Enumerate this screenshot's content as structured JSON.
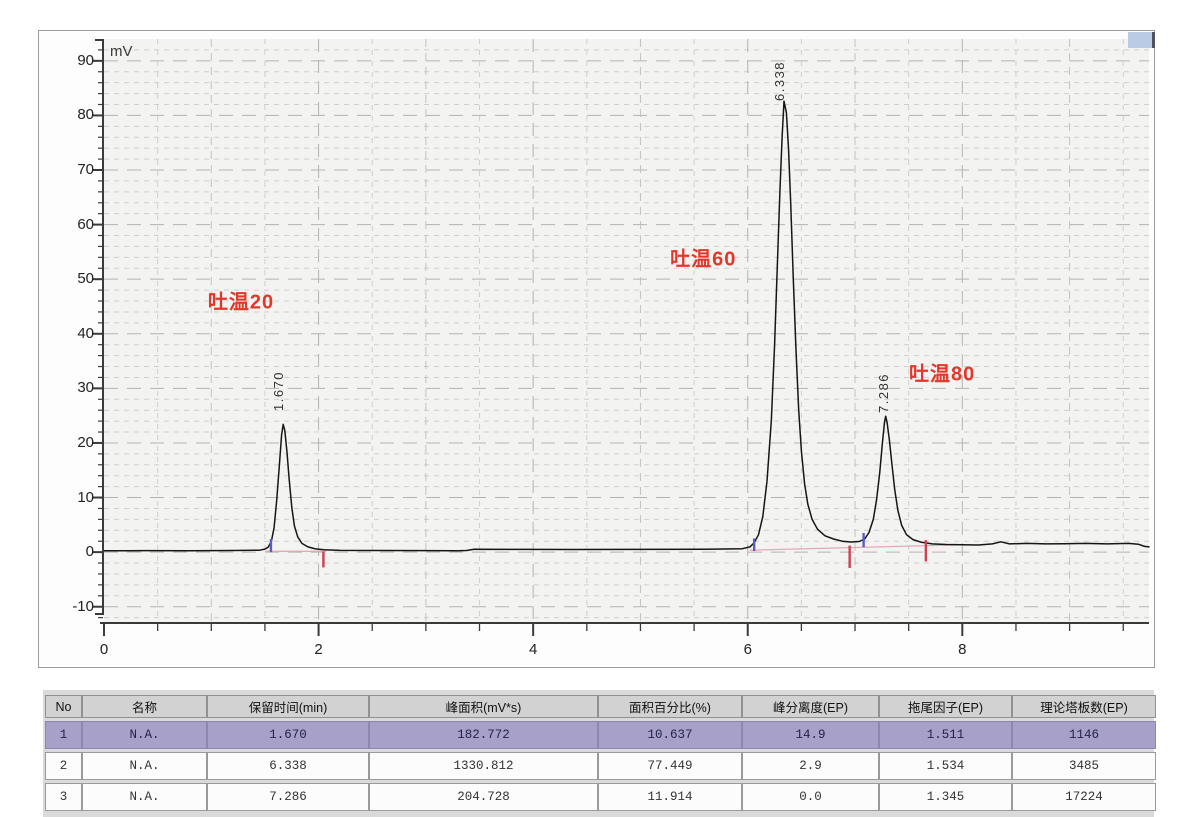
{
  "chart": {
    "y_axis_label": "mV",
    "x_min": 0,
    "x_max": 9.74,
    "y_min": -12.8,
    "y_max": 94,
    "y_major_ticks": [
      -10,
      0,
      10,
      20,
      30,
      40,
      50,
      60,
      70,
      80,
      90
    ],
    "y_minor_step": 2,
    "x_labeled_ticks": [
      0,
      2,
      4,
      6,
      8
    ],
    "x_minor_step": 0.5,
    "colors": {
      "curve": "#161616",
      "grid_minor": "#cfcfcf",
      "grid_mid": "#c2c2c2",
      "grid_major": "#b3b3b3",
      "ruler": "#3a3a3a",
      "tick_label": "#222222",
      "peak_label_red": "#e2372b",
      "rt_label": "#333333",
      "baseline_pink": "#e5a9b6",
      "marker_blue": "#5c5cc2",
      "marker_red": "#cc4253",
      "plot_bg": "#f3f3f1",
      "scroll_thumb": "#b9cbe5"
    }
  },
  "chart_data": {
    "type": "line",
    "title": "",
    "xlabel": "",
    "ylabel": "mV",
    "x_unit": "min",
    "xlim": [
      0,
      9.74
    ],
    "ylim": [
      -12.8,
      94
    ],
    "grid": "dashed",
    "legend": "none",
    "peaks": [
      {
        "no": 1,
        "rt": 1.67,
        "rt_text": "1.670",
        "height_mV": 23.4,
        "name": "吐温20",
        "name_pos": {
          "t": 1.277,
          "mV": 46.2
        },
        "rt_label_pos": {
          "t": 1.557,
          "mV": 25.8
        }
      },
      {
        "no": 2,
        "rt": 6.338,
        "rt_text": "6.338",
        "height_mV": 82.6,
        "name": "吐温60",
        "name_pos": {
          "t": 5.585,
          "mV": 54.0
        },
        "rt_label_pos": {
          "t": 6.227,
          "mV": 82.6
        }
      },
      {
        "no": 3,
        "rt": 7.286,
        "rt_text": "7.286",
        "height_mV": 24.9,
        "name": "吐温80",
        "name_pos": {
          "t": 7.812,
          "mV": 33.0
        },
        "rt_label_pos": {
          "t": 7.196,
          "mV": 25.5
        }
      }
    ],
    "series": [
      {
        "name": "detector-signal",
        "points": [
          [
            0,
            0.25
          ],
          [
            0.4,
            0.28
          ],
          [
            0.8,
            0.25
          ],
          [
            1.2,
            0.3
          ],
          [
            1.45,
            0.35
          ],
          [
            1.5,
            0.55
          ],
          [
            1.53,
            0.9
          ],
          [
            1.56,
            2
          ],
          [
            1.585,
            4.5
          ],
          [
            1.61,
            9.5
          ],
          [
            1.635,
            16
          ],
          [
            1.655,
            21.5
          ],
          [
            1.67,
            23.4
          ],
          [
            1.685,
            22.3
          ],
          [
            1.705,
            18.5
          ],
          [
            1.725,
            13.5
          ],
          [
            1.75,
            8.2
          ],
          [
            1.775,
            4.8
          ],
          [
            1.805,
            2.8
          ],
          [
            1.845,
            1.6
          ],
          [
            1.9,
            0.95
          ],
          [
            1.97,
            0.6
          ],
          [
            2.05,
            0.42
          ],
          [
            2.2,
            0.32
          ],
          [
            2.6,
            0.3
          ],
          [
            3.0,
            0.28
          ],
          [
            3.3,
            0.26
          ],
          [
            3.38,
            0.3
          ],
          [
            3.45,
            0.52
          ],
          [
            3.9,
            0.5
          ],
          [
            4.4,
            0.48
          ],
          [
            5.0,
            0.5
          ],
          [
            5.6,
            0.52
          ],
          [
            5.95,
            0.62
          ],
          [
            6.02,
            0.95
          ],
          [
            6.06,
            1.7
          ],
          [
            6.1,
            3.2
          ],
          [
            6.14,
            6.5
          ],
          [
            6.18,
            13
          ],
          [
            6.22,
            24
          ],
          [
            6.25,
            38
          ],
          [
            6.28,
            55
          ],
          [
            6.3,
            66
          ],
          [
            6.32,
            76
          ],
          [
            6.338,
            82.6
          ],
          [
            6.36,
            80.5
          ],
          [
            6.38,
            74
          ],
          [
            6.4,
            64
          ],
          [
            6.425,
            50
          ],
          [
            6.45,
            37
          ],
          [
            6.475,
            26
          ],
          [
            6.5,
            18.5
          ],
          [
            6.53,
            12.5
          ],
          [
            6.56,
            8.8
          ],
          [
            6.6,
            6
          ],
          [
            6.65,
            4.2
          ],
          [
            6.72,
            3
          ],
          [
            6.8,
            2.4
          ],
          [
            6.88,
            2
          ],
          [
            6.96,
            1.85
          ],
          [
            7.04,
            1.95
          ],
          [
            7.09,
            2.4
          ],
          [
            7.13,
            3.6
          ],
          [
            7.17,
            6
          ],
          [
            7.2,
            9.5
          ],
          [
            7.23,
            14.5
          ],
          [
            7.255,
            20
          ],
          [
            7.275,
            23.8
          ],
          [
            7.286,
            24.9
          ],
          [
            7.3,
            23.6
          ],
          [
            7.32,
            20.5
          ],
          [
            7.345,
            16
          ],
          [
            7.37,
            11.5
          ],
          [
            7.4,
            7.6
          ],
          [
            7.435,
            4.9
          ],
          [
            7.48,
            3.2
          ],
          [
            7.54,
            2.3
          ],
          [
            7.62,
            1.8
          ],
          [
            7.72,
            1.5
          ],
          [
            7.85,
            1.4
          ],
          [
            8.0,
            1.35
          ],
          [
            8.15,
            1.3
          ],
          [
            8.28,
            1.5
          ],
          [
            8.36,
            1.9
          ],
          [
            8.44,
            1.5
          ],
          [
            8.6,
            1.6
          ],
          [
            8.78,
            1.5
          ],
          [
            8.95,
            1.55
          ],
          [
            9.15,
            1.6
          ],
          [
            9.35,
            1.5
          ],
          [
            9.55,
            1.6
          ],
          [
            9.64,
            1.45
          ],
          [
            9.7,
            1.05
          ],
          [
            9.74,
            0.95
          ]
        ]
      }
    ],
    "integration_baselines": [
      [
        [
          1.5,
          0.15
        ],
        [
          2.07,
          0.15
        ]
      ],
      [
        [
          6.02,
          0.35
        ],
        [
          8.0,
          1.35
        ]
      ]
    ],
    "integration_markers": [
      {
        "t": 1.556,
        "mv1": 2.4,
        "mv2": 0.0,
        "color": "blue"
      },
      {
        "t": 2.045,
        "mv1": 0.1,
        "mv2": -2.8,
        "color": "red"
      },
      {
        "t": 6.06,
        "mv1": 2.5,
        "mv2": 0.2,
        "color": "blue"
      },
      {
        "t": 6.95,
        "mv1": 1.2,
        "mv2": -2.9,
        "color": "red"
      },
      {
        "t": 7.08,
        "mv1": 3.5,
        "mv2": 0.9,
        "color": "blue"
      },
      {
        "t": 7.66,
        "mv1": 2.2,
        "mv2": -1.7,
        "color": "red"
      }
    ]
  },
  "table": {
    "headers": [
      "No",
      "名称",
      "保留时间(min)",
      "峰面积(mV*s)",
      "面积百分比(%)",
      "峰分离度(EP)",
      "拖尾因子(EP)",
      "理论塔板数(EP)"
    ],
    "rows": [
      [
        "1",
        "N.A.",
        "1.670",
        "182.772",
        "10.637",
        "14.9",
        "1.511",
        "1146"
      ],
      [
        "2",
        "N.A.",
        "6.338",
        "1330.812",
        "77.449",
        "2.9",
        "1.534",
        "3485"
      ],
      [
        "3",
        "N.A.",
        "7.286",
        "204.728",
        "11.914",
        "0.0",
        "1.345",
        "17224"
      ]
    ],
    "selected_row_index": 0
  }
}
